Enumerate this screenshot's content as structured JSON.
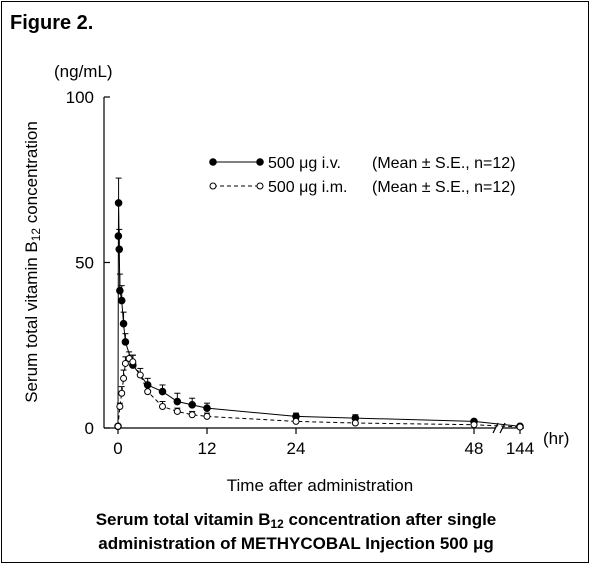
{
  "figure_title": "Figure 2.",
  "y_unit": "(ng/mL)",
  "x_unit": "(hr)",
  "ylabel_main": "Serum total vitamin B",
  "ylabel_sub": "12",
  "ylabel_end": " concentration",
  "xlabel": "Time after administration",
  "caption_line1_a": "Serum total vitamin B",
  "caption_line1_sub": "12",
  "caption_line1_b": " concentration after single",
  "caption_line2": "administration of METHYCOBAL Injection 500 μg",
  "colors": {
    "line": "#000000",
    "background": "#ffffff"
  },
  "chart_data": {
    "type": "line",
    "x_axis": {
      "ticks": [
        0,
        12,
        24,
        48,
        144
      ],
      "break_after": 48,
      "xlim": [
        0,
        144
      ]
    },
    "y_axis": {
      "ticks": [
        0,
        50,
        100
      ],
      "ylim": [
        0,
        100
      ]
    },
    "legend_position": "top-right",
    "series": [
      {
        "name": "500 μg i.v.",
        "legend_note": "(Mean ± S.E., n=12)",
        "marker": "filled-circle",
        "line_style": "solid",
        "points": [
          {
            "x": 0,
            "y": 0.5
          },
          {
            "x": 0.05,
            "y": 58,
            "err": 0
          },
          {
            "x": 0.08,
            "y": 68,
            "err": 7.5
          },
          {
            "x": 0.17,
            "y": 54,
            "err": 6
          },
          {
            "x": 0.25,
            "y": 41.5,
            "err": 5
          },
          {
            "x": 0.5,
            "y": 38.5,
            "err": 4.5
          },
          {
            "x": 0.75,
            "y": 31.5,
            "err": 3.5
          },
          {
            "x": 1,
            "y": 26,
            "err": 2.5
          },
          {
            "x": 2,
            "y": 19,
            "err": 3
          },
          {
            "x": 4,
            "y": 13,
            "err": 2
          },
          {
            "x": 6,
            "y": 11,
            "err": 2
          },
          {
            "x": 8,
            "y": 8,
            "err": 2.5
          },
          {
            "x": 10,
            "y": 7,
            "err": 2
          },
          {
            "x": 12,
            "y": 6,
            "err": 1.5
          },
          {
            "x": 24,
            "y": 3.5,
            "err": 1
          },
          {
            "x": 32,
            "y": 3,
            "err": 1
          },
          {
            "x": 48,
            "y": 2,
            "err": 0.5
          },
          {
            "x": 144,
            "y": 0.5
          }
        ]
      },
      {
        "name": "500 μg i.m.",
        "legend_note": "(Mean ± S.E., n=12)",
        "marker": "open-circle",
        "line_style": "dashed",
        "points": [
          {
            "x": 0,
            "y": 0.5
          },
          {
            "x": 0.25,
            "y": 6.5,
            "err": 1
          },
          {
            "x": 0.5,
            "y": 10.5,
            "err": 2
          },
          {
            "x": 0.75,
            "y": 15,
            "err": 2.5
          },
          {
            "x": 1,
            "y": 19.5,
            "err": 2
          },
          {
            "x": 1.5,
            "y": 21,
            "err": 2
          },
          {
            "x": 2,
            "y": 20,
            "err": 2
          },
          {
            "x": 3,
            "y": 16,
            "err": 2
          },
          {
            "x": 4,
            "y": 11,
            "err": 2
          },
          {
            "x": 6,
            "y": 6.5,
            "err": 1.5
          },
          {
            "x": 8,
            "y": 5,
            "err": 1
          },
          {
            "x": 10,
            "y": 4,
            "err": 1
          },
          {
            "x": 12,
            "y": 3.5,
            "err": 1
          },
          {
            "x": 24,
            "y": 2,
            "err": 0.5
          },
          {
            "x": 32,
            "y": 1.5,
            "err": 0.3
          },
          {
            "x": 48,
            "y": 1,
            "err": 0.3
          },
          {
            "x": 144,
            "y": 0.3
          }
        ]
      }
    ]
  }
}
